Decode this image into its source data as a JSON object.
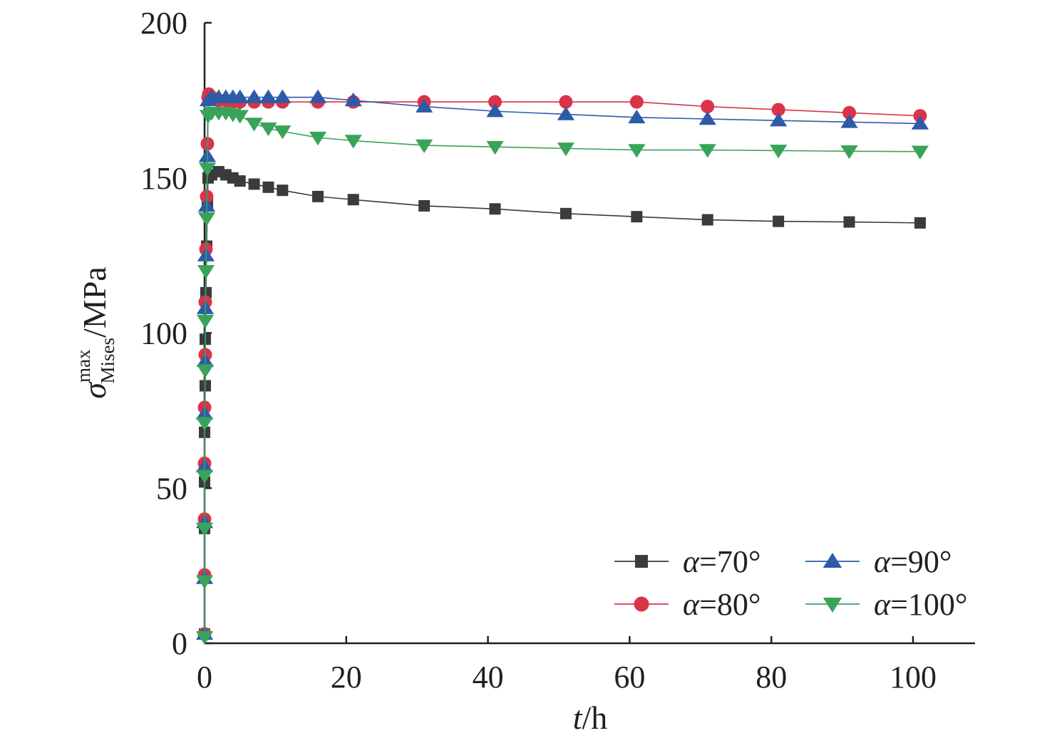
{
  "chart_data": {
    "type": "line",
    "xlabel": {
      "var": "t",
      "unit": "/h"
    },
    "ylabel": {
      "sym": "σ",
      "sup": "max",
      "sub": "Mises",
      "unit": "/MPa"
    },
    "xlim": [
      0,
      110
    ],
    "ylim": [
      0,
      200
    ],
    "xticks": [
      "0",
      "20",
      "40",
      "60",
      "80",
      "100"
    ],
    "yticks": [
      "0",
      "50",
      "100",
      "150",
      "200"
    ],
    "grid": false,
    "legend_placement": "bottom-right",
    "series": [
      {
        "name": "α=70°",
        "var": "α",
        "val": "=70°",
        "color": "#3a3b3d",
        "marker": "square",
        "x": [
          0,
          0,
          0,
          0,
          0,
          0.1,
          0.1,
          0.2,
          0.3,
          0.4,
          0.5,
          1,
          2,
          3,
          4,
          5,
          7,
          9,
          11,
          16,
          21,
          31,
          41,
          51,
          61,
          71,
          81,
          91,
          101
        ],
        "y": [
          3,
          21,
          37,
          52,
          68,
          83,
          98,
          113,
          128,
          142,
          150,
          151,
          152,
          151,
          150,
          149,
          148,
          147,
          146,
          144,
          143,
          141,
          140,
          138.5,
          137.5,
          136.5,
          136,
          135.8,
          135.5
        ]
      },
      {
        "name": "α=80°",
        "var": "α",
        "val": "=80°",
        "color": "#d9344a",
        "marker": "circle",
        "x": [
          0,
          0,
          0,
          0,
          0,
          0.1,
          0.1,
          0.2,
          0.3,
          0.4,
          0.5,
          0.6,
          1,
          2,
          3,
          4,
          5,
          7,
          9,
          11,
          16,
          21,
          31,
          41,
          51,
          61,
          71,
          81,
          91,
          101
        ],
        "y": [
          3,
          22,
          40,
          58,
          76,
          93,
          110,
          127,
          144,
          161,
          176,
          177,
          176,
          175,
          175,
          174.5,
          174.5,
          174.5,
          174.5,
          174.5,
          174.5,
          174.5,
          174.5,
          174.5,
          174.5,
          174.5,
          173,
          172,
          171,
          170
        ]
      },
      {
        "name": "α=90°",
        "var": "α",
        "val": "=90°",
        "color": "#2e5ba8",
        "marker": "triangle-up",
        "x": [
          0,
          0,
          0,
          0,
          0,
          0.1,
          0.1,
          0.2,
          0.3,
          0.4,
          0.5,
          1,
          2,
          3,
          4,
          5,
          7,
          9,
          11,
          16,
          21,
          31,
          41,
          51,
          61,
          71,
          81,
          91,
          101
        ],
        "y": [
          3,
          21,
          39,
          57,
          74,
          91,
          108,
          125,
          141,
          157,
          175,
          176,
          176,
          176,
          176,
          176,
          176,
          176,
          176,
          176,
          175,
          173,
          171.5,
          170.5,
          169.5,
          169,
          168.5,
          168,
          167.5
        ]
      },
      {
        "name": "α=100°",
        "var": "α",
        "val": "=100°",
        "color": "#3aa35a",
        "marker": "triangle-down",
        "x": [
          0,
          0,
          0,
          0,
          0,
          0.1,
          0.1,
          0.2,
          0.3,
          0.4,
          0.5,
          1,
          2,
          3,
          4,
          5,
          7,
          9,
          11,
          16,
          21,
          31,
          41,
          51,
          61,
          71,
          81,
          91,
          101
        ],
        "y": [
          2,
          20,
          37,
          54,
          71,
          88,
          104,
          120,
          137,
          153,
          170,
          171,
          171,
          171,
          170.5,
          170,
          167.5,
          166,
          165,
          163,
          162,
          160.5,
          160,
          159.5,
          159,
          159,
          158.8,
          158.6,
          158.5
        ]
      }
    ]
  }
}
